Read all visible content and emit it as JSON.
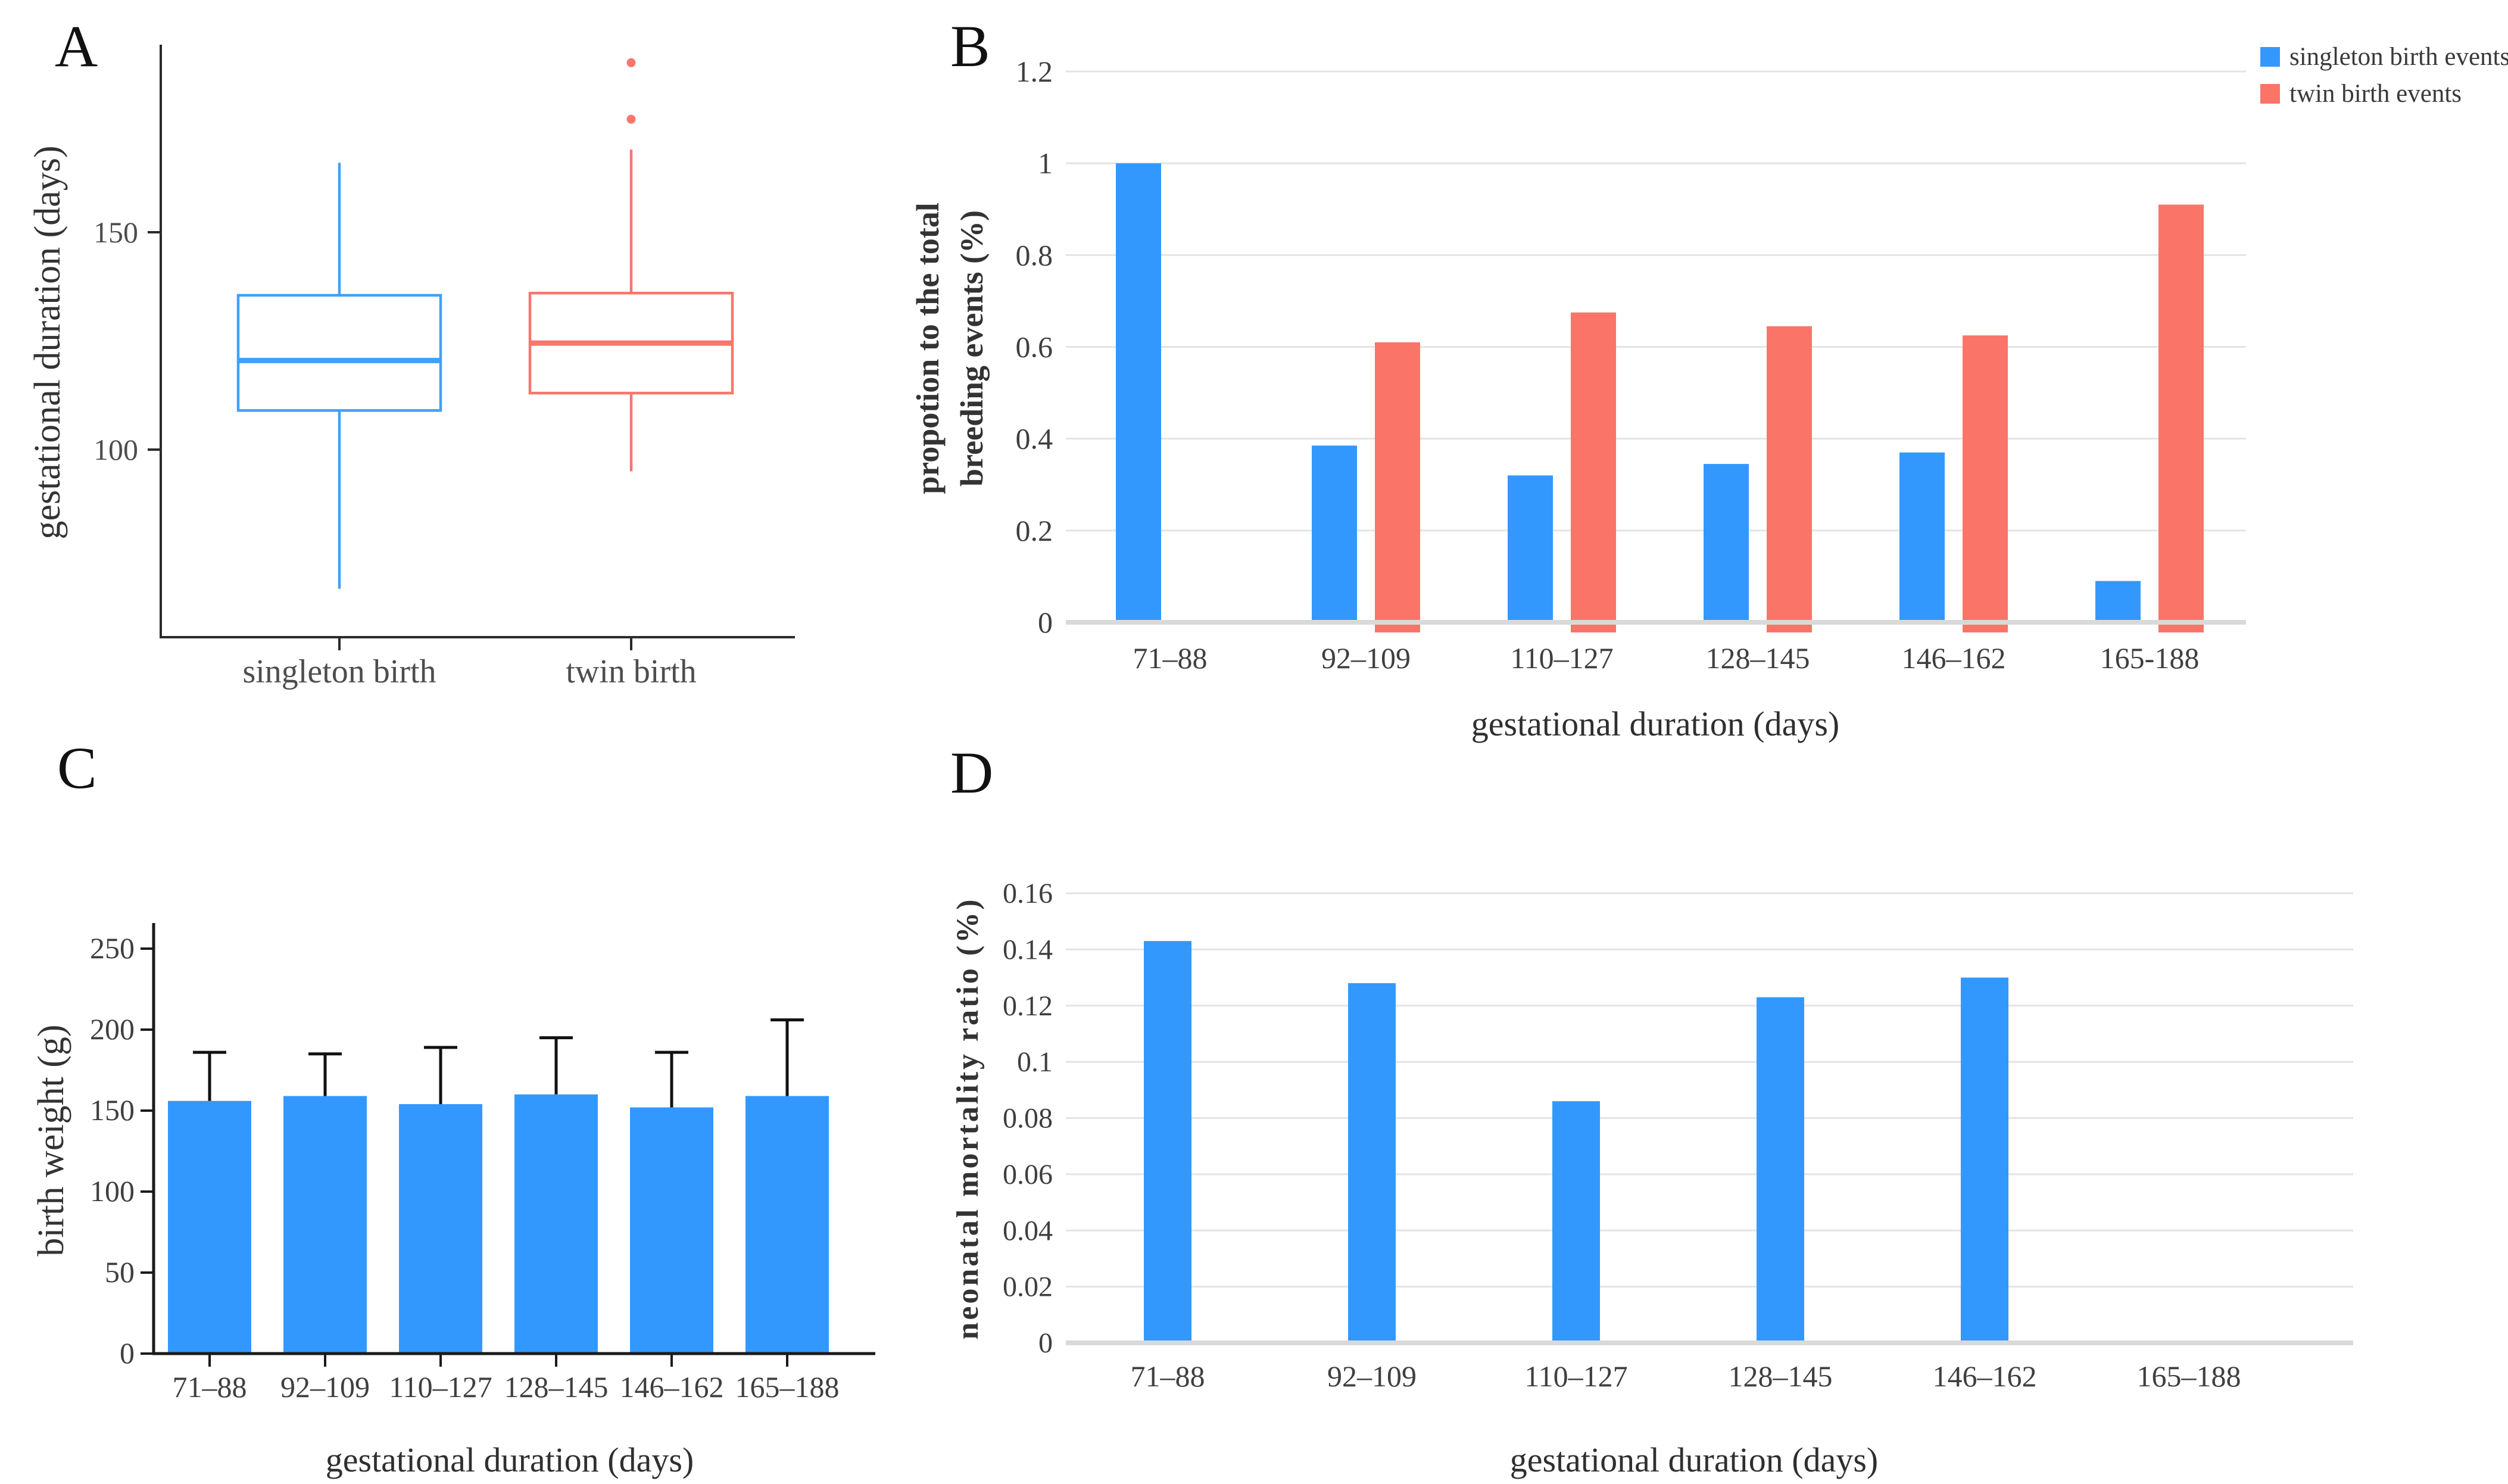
{
  "figure": {
    "background": "#ffffff"
  },
  "colors": {
    "bar_blue": "#3398FE",
    "bar_red": "#FB7468",
    "box_blue": "#41A0F7",
    "box_red": "#F8766D",
    "gridline": "#E4E4E4",
    "axis_gray": "#D9D9D9",
    "axis_black": "#1A1A1A",
    "tick_text": "#3F3F3F",
    "tick_text_a": "#4D4D4D"
  },
  "chart_data": [
    {
      "id": "A",
      "letter": "A",
      "type": "boxplot",
      "ylabel": "gestational duration (days)",
      "yticks": [
        100,
        150
      ],
      "ylim": [
        60,
        196
      ],
      "categories": [
        "singleton birth",
        "twin birth"
      ],
      "series": [
        {
          "name": "singleton birth",
          "color": "#41A0F7",
          "whisker_low": 68,
          "q1": 109,
          "median": 120.5,
          "q3": 135.5,
          "whisker_high": 166,
          "outliers": []
        },
        {
          "name": "twin birth",
          "color": "#F8766D",
          "whisker_low": 95,
          "q1": 113,
          "median": 124.5,
          "q3": 136,
          "whisker_high": 169,
          "outliers": [
            176,
            189
          ]
        }
      ]
    },
    {
      "id": "B",
      "letter": "B",
      "type": "bar",
      "ylabel_lines": [
        "propotion to the total",
        "breeding events (%)"
      ],
      "xlabel": "gestational duration (days)",
      "categories": [
        "71–88",
        "92–109",
        "110–127",
        "128–145",
        "146–162",
        "165-188"
      ],
      "yticks": [
        0,
        0.2,
        0.4,
        0.6,
        0.8,
        1,
        1.2
      ],
      "ytick_labels": [
        "0",
        "0.2",
        "0.4",
        "0.6",
        "0.8",
        "1",
        "1.2"
      ],
      "ylim": [
        0,
        1.2
      ],
      "grid": true,
      "legend_position": "top-right",
      "series": [
        {
          "name": "singleton birth events",
          "color": "#3398FE",
          "values": [
            1.0,
            0.385,
            0.32,
            0.345,
            0.37,
            0.09
          ]
        },
        {
          "name": "twin birth events",
          "color": "#FB7468",
          "values": [
            0,
            0.61,
            0.675,
            0.645,
            0.625,
            0.91
          ]
        }
      ]
    },
    {
      "id": "C",
      "letter": "C",
      "type": "bar-error",
      "ylabel": "birth weight (g)",
      "xlabel": "gestational duration (days)",
      "categories": [
        "71–88",
        "92–109",
        "110–127",
        "128–145",
        "146–162",
        "165–188"
      ],
      "yticks": [
        0,
        50,
        100,
        150,
        200,
        250
      ],
      "ytick_labels": [
        "0",
        "50",
        "100",
        "150",
        "200",
        "250"
      ],
      "ylim": [
        0,
        265
      ],
      "grid": false,
      "values": [
        156,
        159,
        154,
        160,
        152,
        159
      ],
      "error_high": [
        186,
        185,
        189,
        195,
        186,
        206
      ],
      "bar_color": "#3398FE"
    },
    {
      "id": "D",
      "letter": "D",
      "type": "bar",
      "ylabel": "neonatal mortality ratio (%)",
      "xlabel": "gestational duration (days)",
      "categories": [
        "71–88",
        "92–109",
        "110–127",
        "128–145",
        "146–162",
        "165–188"
      ],
      "yticks": [
        0,
        0.02,
        0.04,
        0.06,
        0.08,
        0.1,
        0.12,
        0.14,
        0.16
      ],
      "ytick_labels": [
        "0",
        "0.02",
        "0.04",
        "0.06",
        "0.08",
        "0.1",
        "0.12",
        "0.14",
        "0.16"
      ],
      "ylim": [
        0,
        0.16
      ],
      "grid": true,
      "values": [
        0.143,
        0.128,
        0.086,
        0.123,
        0.13,
        0
      ],
      "bar_color": "#3398FE"
    }
  ]
}
